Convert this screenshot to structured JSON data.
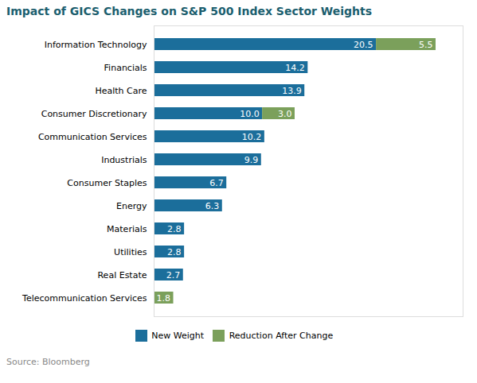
{
  "chart_data": {
    "type": "bar",
    "orientation": "horizontal",
    "stacked": true,
    "title": "Impact of GICS Changes on S&P 500 Index Sector Weights",
    "caption": "Source: Bloomberg",
    "categories": [
      "Information Technology",
      "Financials",
      "Health Care",
      "Consumer Discretionary",
      "Communication Services",
      "Industrials",
      "Consumer Staples",
      "Energy",
      "Materials",
      "Utilities",
      "Real Estate",
      "Telecommunication Services"
    ],
    "series": [
      {
        "name": "New Weight",
        "color": "#1b6e9b",
        "values": [
          20.5,
          14.2,
          13.9,
          10.0,
          10.2,
          9.9,
          6.7,
          6.3,
          2.8,
          2.8,
          2.7,
          0.0
        ],
        "value_labels": [
          "20.5",
          "14.2",
          "13.9",
          "10.0",
          "10.2",
          "9.9",
          "6.7",
          "6.3",
          "2.8",
          "2.8",
          "2.7",
          null
        ]
      },
      {
        "name": "Reduction After Change",
        "color": "#7ba05b",
        "values": [
          5.5,
          0.0,
          0.0,
          3.0,
          0.0,
          0.0,
          0.0,
          0.0,
          0.0,
          0.0,
          0.0,
          1.8
        ],
        "value_labels": [
          "5.5",
          null,
          null,
          "3.0",
          null,
          null,
          null,
          null,
          null,
          null,
          null,
          "1.8"
        ]
      }
    ],
    "xlim": [
      0,
      28.5
    ],
    "data_labels": true,
    "tick_labels": "y",
    "grid": false,
    "legend": "bottom"
  }
}
